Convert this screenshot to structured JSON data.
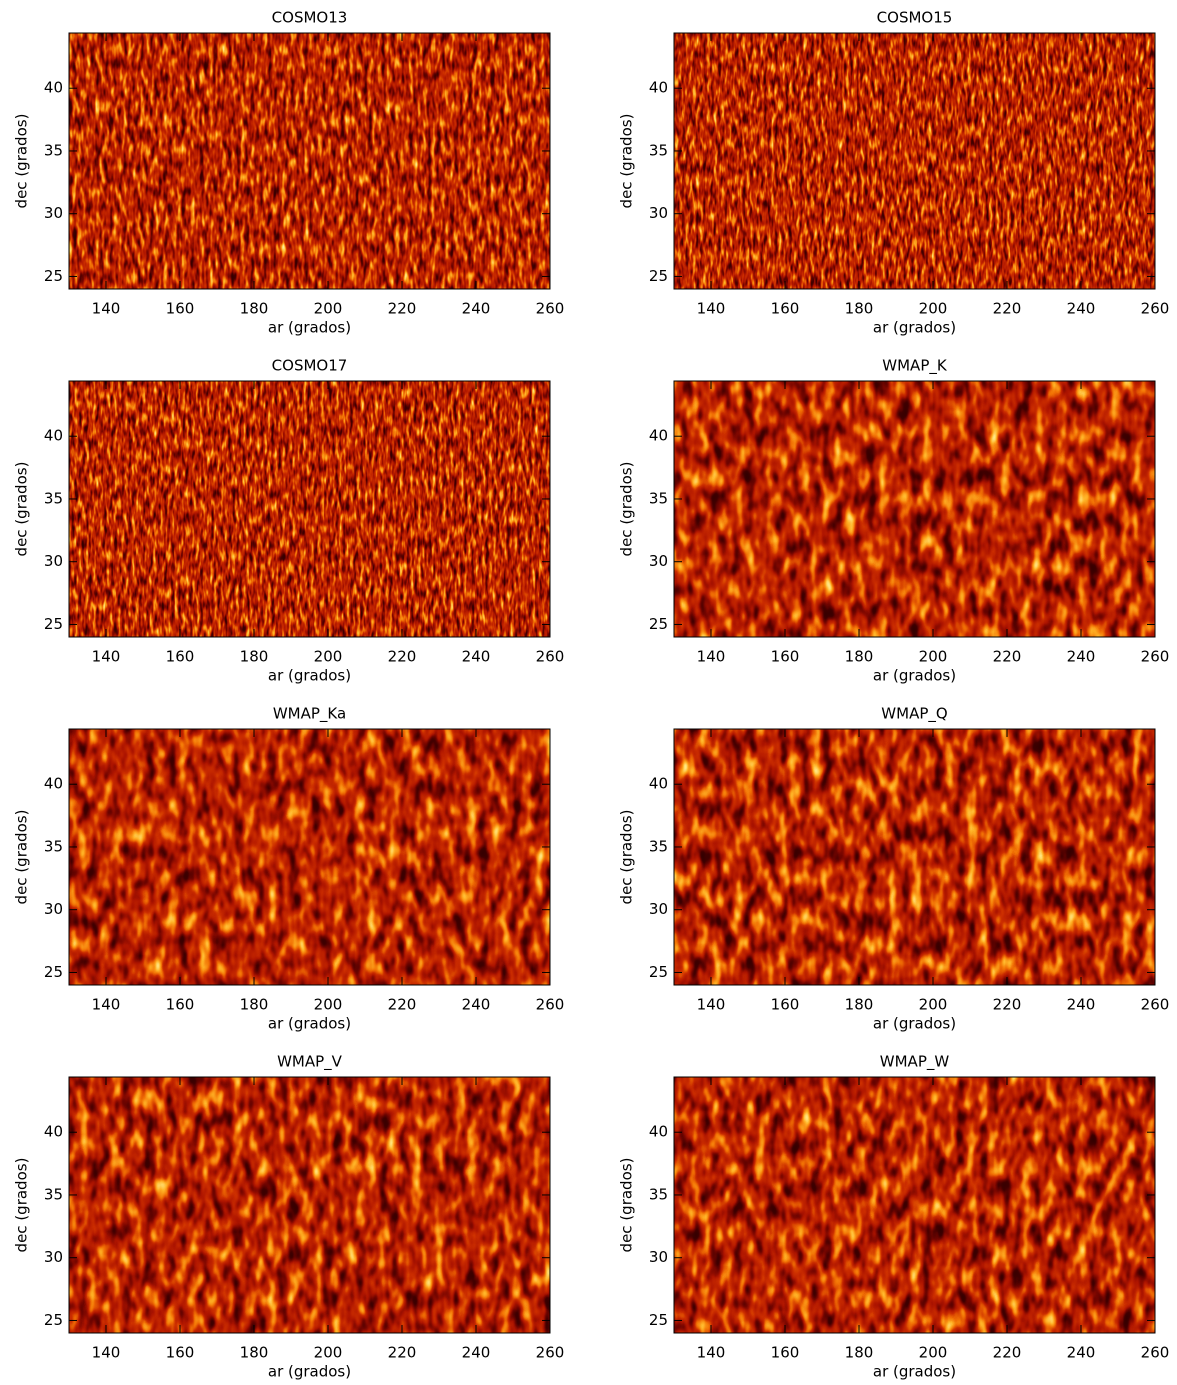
{
  "chart_data": [
    {
      "type": "heatmap",
      "title": "COSMO13",
      "xlabel": "ar (grados)",
      "ylabel": "dec (grados)",
      "xlim": [
        130,
        260
      ],
      "ylim": [
        24,
        44.4
      ],
      "xticks": [
        140,
        160,
        180,
        200,
        220,
        240,
        260
      ],
      "yticks": [
        25,
        30,
        35,
        40
      ]
    },
    {
      "type": "heatmap",
      "title": "COSMO15",
      "xlabel": "ar (grados)",
      "ylabel": "dec (grados)",
      "xlim": [
        130,
        260
      ],
      "ylim": [
        24,
        44.4
      ],
      "xticks": [
        140,
        160,
        180,
        200,
        220,
        240,
        260
      ],
      "yticks": [
        25,
        30,
        35,
        40
      ]
    },
    {
      "type": "heatmap",
      "title": "COSMO17",
      "xlabel": "ar (grados)",
      "ylabel": "dec (grados)",
      "xlim": [
        130,
        260
      ],
      "ylim": [
        24,
        44.4
      ],
      "xticks": [
        140,
        160,
        180,
        200,
        220,
        240,
        260
      ],
      "yticks": [
        25,
        30,
        35,
        40
      ]
    },
    {
      "type": "heatmap",
      "title": "WMAP_K",
      "xlabel": "ar (grados)",
      "ylabel": "dec (grados)",
      "xlim": [
        130,
        260
      ],
      "ylim": [
        24,
        44.4
      ],
      "xticks": [
        140,
        160,
        180,
        200,
        220,
        240,
        260
      ],
      "yticks": [
        25,
        30,
        35,
        40
      ]
    },
    {
      "type": "heatmap",
      "title": "WMAP_Ka",
      "xlabel": "ar (grados)",
      "ylabel": "dec (grados)",
      "xlim": [
        130,
        260
      ],
      "ylim": [
        24,
        44.4
      ],
      "xticks": [
        140,
        160,
        180,
        200,
        220,
        240,
        260
      ],
      "yticks": [
        25,
        30,
        35,
        40
      ]
    },
    {
      "type": "heatmap",
      "title": "WMAP_Q",
      "xlabel": "ar (grados)",
      "ylabel": "dec (grados)",
      "xlim": [
        130,
        260
      ],
      "ylim": [
        24,
        44.4
      ],
      "xticks": [
        140,
        160,
        180,
        200,
        220,
        240,
        260
      ],
      "yticks": [
        25,
        30,
        35,
        40
      ]
    },
    {
      "type": "heatmap",
      "title": "WMAP_V",
      "xlabel": "ar (grados)",
      "ylabel": "dec (grados)",
      "xlim": [
        130,
        260
      ],
      "ylim": [
        24,
        44.4
      ],
      "xticks": [
        140,
        160,
        180,
        200,
        220,
        240,
        260
      ],
      "yticks": [
        25,
        30,
        35,
        40
      ]
    },
    {
      "type": "heatmap",
      "title": "WMAP_W",
      "xlabel": "ar (grados)",
      "ylabel": "dec (grados)",
      "xlim": [
        130,
        260
      ],
      "ylim": [
        24,
        44.4
      ],
      "xticks": [
        140,
        160,
        180,
        200,
        220,
        240,
        260
      ],
      "yticks": [
        25,
        30,
        35,
        40
      ]
    }
  ]
}
